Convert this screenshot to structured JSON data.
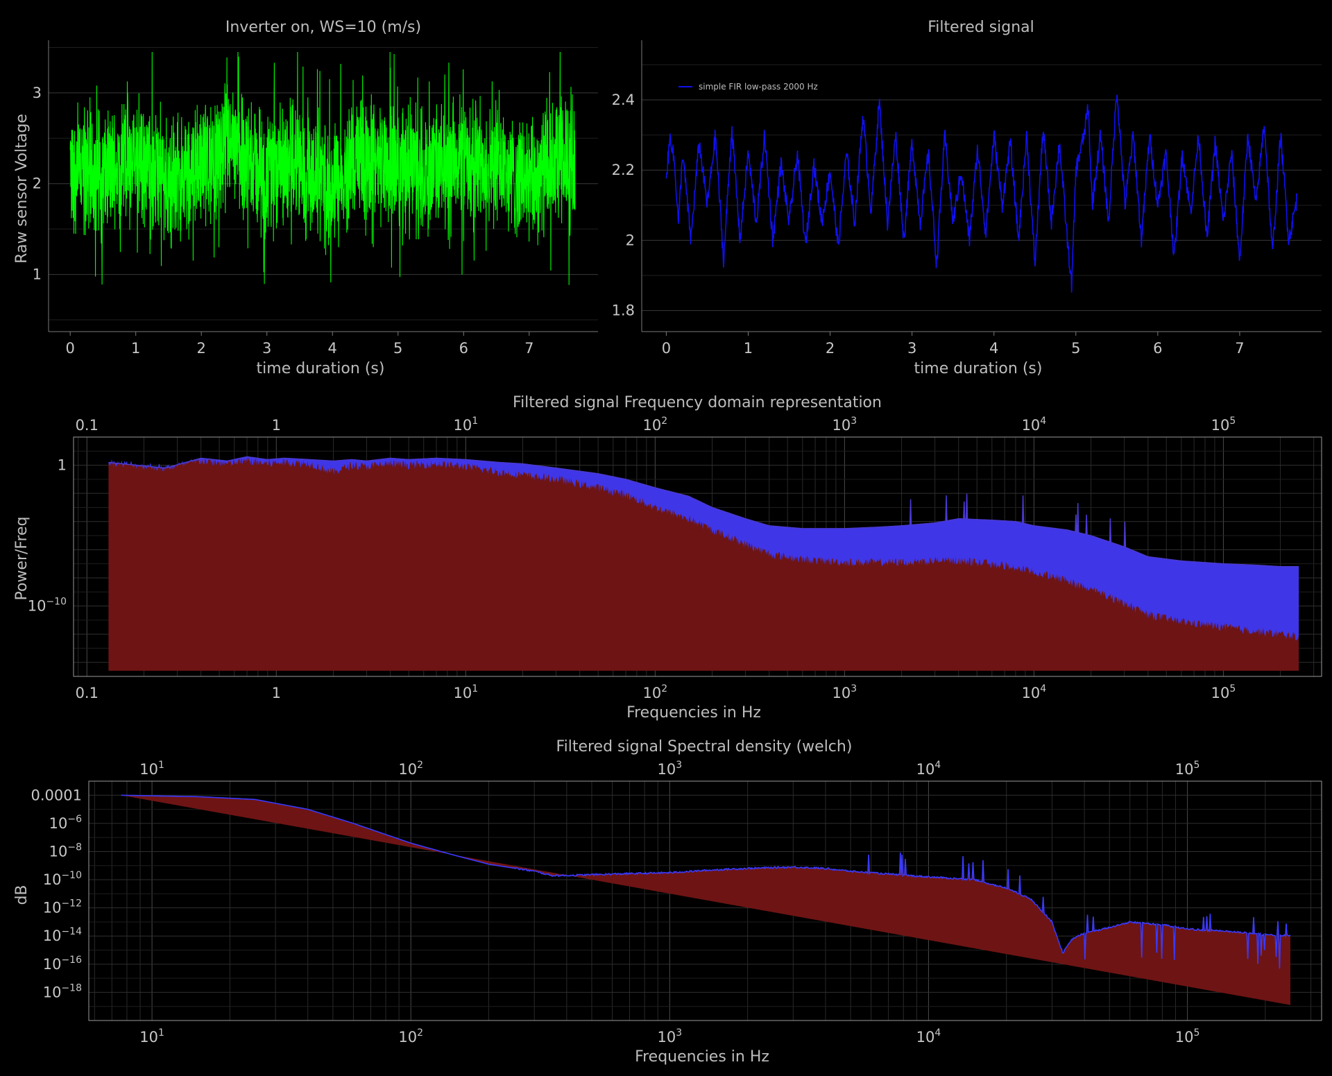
{
  "chart_data": [
    {
      "id": "raw",
      "type": "line",
      "title": "Inverter on, WS=10 (m/s)",
      "xlabel": "time duration (s)",
      "ylabel": "Raw sensor Voltage",
      "xlim": [
        -0.33,
        8.05
      ],
      "ylim": [
        0.37,
        3.58
      ],
      "xticks": [
        0,
        1,
        2,
        3,
        4,
        5,
        6,
        7
      ],
      "yticks": [
        1,
        2,
        3
      ],
      "grid": true,
      "series": [
        {
          "color": "#00ff00",
          "x_range": [
            0,
            7.7
          ],
          "mean": 2.18,
          "min": 0.6,
          "max": 3.45,
          "summary_points": {
            "x": [
              0,
              0.5,
              1,
              1.5,
              2,
              2.5,
              3,
              3.5,
              4,
              4.5,
              5,
              5.5,
              6,
              6.5,
              7,
              7.5,
              7.7
            ],
            "y": [
              2.2,
              2.1,
              2.3,
              2.0,
              2.2,
              2.4,
              2.1,
              2.2,
              2.0,
              2.3,
              2.2,
              2.1,
              2.3,
              2.2,
              2.0,
              2.2,
              2.2
            ]
          }
        }
      ]
    },
    {
      "id": "filtered",
      "type": "line",
      "title": "Filtered signal",
      "xlabel": "time duration (s)",
      "ylabel": "",
      "xlim": [
        -0.3,
        8.0
      ],
      "ylim": [
        1.74,
        2.57
      ],
      "xticks": [
        0,
        1,
        2,
        3,
        4,
        5,
        6,
        7
      ],
      "yticks": [
        1.8,
        2.0,
        2.2,
        2.4
      ],
      "ytick_labels": [
        "1.8",
        "2",
        "2.2",
        "2.4"
      ],
      "grid": true,
      "legend": "top-left",
      "series": [
        {
          "name": "simple FIR low-pass 2000 Hz",
          "color": "#1010ee",
          "x": [
            0,
            0.05,
            0.1,
            0.15,
            0.2,
            0.3,
            0.4,
            0.5,
            0.6,
            0.7,
            0.8,
            0.9,
            1.0,
            1.1,
            1.2,
            1.3,
            1.4,
            1.5,
            1.6,
            1.7,
            1.8,
            1.9,
            2.0,
            2.1,
            2.2,
            2.3,
            2.4,
            2.5,
            2.6,
            2.7,
            2.8,
            2.9,
            3.0,
            3.1,
            3.2,
            3.3,
            3.4,
            3.5,
            3.6,
            3.7,
            3.8,
            3.9,
            4.0,
            4.1,
            4.2,
            4.3,
            4.4,
            4.5,
            4.6,
            4.7,
            4.8,
            4.9,
            4.95,
            5.0,
            5.1,
            5.15,
            5.2,
            5.3,
            5.4,
            5.5,
            5.6,
            5.7,
            5.8,
            5.9,
            6.0,
            6.1,
            6.2,
            6.3,
            6.4,
            6.5,
            6.6,
            6.7,
            6.8,
            6.9,
            7.0,
            7.1,
            7.2,
            7.3,
            7.4,
            7.5,
            7.6,
            7.7
          ],
          "y": [
            2.18,
            2.3,
            2.22,
            2.05,
            2.25,
            2.0,
            2.28,
            2.1,
            2.3,
            1.94,
            2.32,
            2.0,
            2.25,
            2.05,
            2.3,
            2.0,
            2.22,
            2.05,
            2.25,
            1.98,
            2.22,
            2.05,
            2.2,
            1.98,
            2.25,
            2.05,
            2.36,
            2.08,
            2.4,
            2.05,
            2.3,
            2.0,
            2.28,
            2.05,
            2.25,
            1.93,
            2.3,
            2.05,
            2.2,
            2.0,
            2.26,
            2.02,
            2.3,
            2.1,
            2.28,
            2.0,
            2.3,
            1.93,
            2.32,
            2.05,
            2.28,
            1.99,
            1.87,
            2.2,
            2.3,
            2.38,
            2.1,
            2.3,
            2.05,
            2.43,
            2.1,
            2.3,
            2.0,
            2.3,
            2.1,
            2.25,
            1.95,
            2.25,
            2.08,
            2.3,
            2.0,
            2.28,
            2.05,
            2.25,
            1.94,
            2.3,
            2.1,
            2.34,
            1.96,
            2.3,
            2.0,
            2.12
          ]
        }
      ]
    },
    {
      "id": "fft",
      "type": "area",
      "title": "Filtered signal Frequency domain representation",
      "xlabel": "Frequencies in Hz",
      "ylabel": "Power/Freq",
      "xscale": "log",
      "yscale": "log",
      "xlim": [
        0.085,
        330000
      ],
      "ylim_log10": [
        -15.0,
        2.0
      ],
      "xticks": [
        0.1,
        1,
        10,
        100,
        1000,
        10000,
        100000
      ],
      "yticks": [
        1,
        1e-10
      ],
      "ytick_labels": [
        {
          "b": "1",
          "e": ""
        },
        {
          "b": "10",
          "e": "−10"
        }
      ],
      "grid": true,
      "series": [
        {
          "name": "",
          "color": "#3a3aff",
          "fill": "#6e1414",
          "x": [
            0.13,
            0.26,
            0.4,
            0.55,
            0.7,
            0.9,
            1.1,
            1.5,
            2,
            2.5,
            3,
            4,
            5,
            7,
            10,
            15,
            20,
            30,
            50,
            70,
            100,
            150,
            200,
            300,
            400,
            600,
            1000,
            1500,
            2000,
            3000,
            4000,
            6000,
            8000,
            10000,
            15000,
            20000,
            30000,
            40000,
            60000,
            100000,
            150000,
            200000,
            250000
          ],
          "y_log10": [
            0.2,
            -0.2,
            0.4,
            0.2,
            0.5,
            0.3,
            0.4,
            0.3,
            0.1,
            0.3,
            0.2,
            0.4,
            0.3,
            0.4,
            0.3,
            0.1,
            0.0,
            -0.3,
            -0.8,
            -1.2,
            -2.0,
            -2.7,
            -3.6,
            -4.5,
            -5.1,
            -5.3,
            -5.3,
            -5.2,
            -5.1,
            -4.9,
            -4.8,
            -4.9,
            -5.0,
            -5.2,
            -5.6,
            -6.0,
            -7.2,
            -8.5,
            -9.2,
            -9.6,
            -9.8,
            -9.9,
            -10.0
          ],
          "y_upper_log10": [
            0.2,
            -0.2,
            0.5,
            0.3,
            0.6,
            0.4,
            0.5,
            0.4,
            0.3,
            0.4,
            0.3,
            0.5,
            0.4,
            0.5,
            0.4,
            0.2,
            0.1,
            -0.2,
            -0.6,
            -1.0,
            -1.6,
            -2.2,
            -3.0,
            -3.8,
            -4.3,
            -4.5,
            -4.5,
            -4.4,
            -4.3,
            -4.1,
            -3.8,
            -3.9,
            -4.0,
            -4.3,
            -4.6,
            -5.0,
            -5.8,
            -6.5,
            -6.8,
            -7.0,
            -7.1,
            -7.2,
            -7.2
          ],
          "y_lower_log10": [
            0.2,
            -0.2,
            0.3,
            0.1,
            0.3,
            0.1,
            0.2,
            0.1,
            -0.5,
            0.0,
            -0.1,
            0.1,
            0.0,
            0.1,
            -0.1,
            -0.5,
            -0.7,
            -1.0,
            -1.6,
            -2.1,
            -3.0,
            -3.8,
            -4.6,
            -5.6,
            -6.3,
            -6.7,
            -6.9,
            -6.9,
            -6.9,
            -6.8,
            -6.8,
            -7.0,
            -7.3,
            -7.6,
            -8.2,
            -8.8,
            -9.8,
            -10.6,
            -11.1,
            -11.5,
            -11.8,
            -12.0,
            -12.2
          ],
          "fill_to_log10": -14.6
        }
      ]
    },
    {
      "id": "welch",
      "type": "area",
      "title": "Filtered signal Spectral density (welch)",
      "xlabel": "Frequencies in Hz",
      "ylabel": "dB",
      "xscale": "log",
      "yscale": "log",
      "xlim": [
        5.7,
        330000
      ],
      "ylim_log10": [
        -20.0,
        -3.0
      ],
      "xticks": [
        10,
        100,
        1000,
        10000,
        100000
      ],
      "yticks": [
        0.0001,
        1e-06,
        1e-08,
        1e-10,
        1e-12,
        1e-14,
        1e-16,
        1e-18
      ],
      "ytick_labels": [
        {
          "b": "0.0001",
          "e": ""
        },
        {
          "b": "10",
          "e": "−6"
        },
        {
          "b": "10",
          "e": "−8"
        },
        {
          "b": "10",
          "e": "−10"
        },
        {
          "b": "10",
          "e": "−12"
        },
        {
          "b": "10",
          "e": "−14"
        },
        {
          "b": "10",
          "e": "−16"
        },
        {
          "b": "10",
          "e": "−18"
        }
      ],
      "grid": true,
      "series": [
        {
          "name": "",
          "color": "#3a3aff",
          "fill": "#6e1414",
          "x": [
            7.6,
            15,
            25,
            40,
            60,
            100,
            150,
            200,
            300,
            350,
            400,
            600,
            1000,
            1500,
            2000,
            3000,
            4000,
            5000,
            7000,
            10000,
            15000,
            20000,
            25000,
            30000,
            33000,
            36000,
            40000,
            50000,
            60000,
            80000,
            100000,
            150000,
            200000,
            250000
          ],
          "y_log10": [
            -4.0,
            -4.1,
            -4.3,
            -5.0,
            -6.0,
            -7.4,
            -8.3,
            -8.9,
            -9.4,
            -9.7,
            -9.7,
            -9.6,
            -9.5,
            -9.3,
            -9.2,
            -9.1,
            -9.2,
            -9.4,
            -9.6,
            -9.8,
            -10.0,
            -10.6,
            -11.4,
            -13.0,
            -15.2,
            -14.2,
            -13.8,
            -13.4,
            -13.0,
            -13.2,
            -13.5,
            -13.7,
            -13.9,
            -14.0
          ],
          "baseline_log10": [
            [
              7.6,
              -4.0
            ],
            [
              250000,
              -18.9
            ]
          ]
        }
      ]
    }
  ]
}
